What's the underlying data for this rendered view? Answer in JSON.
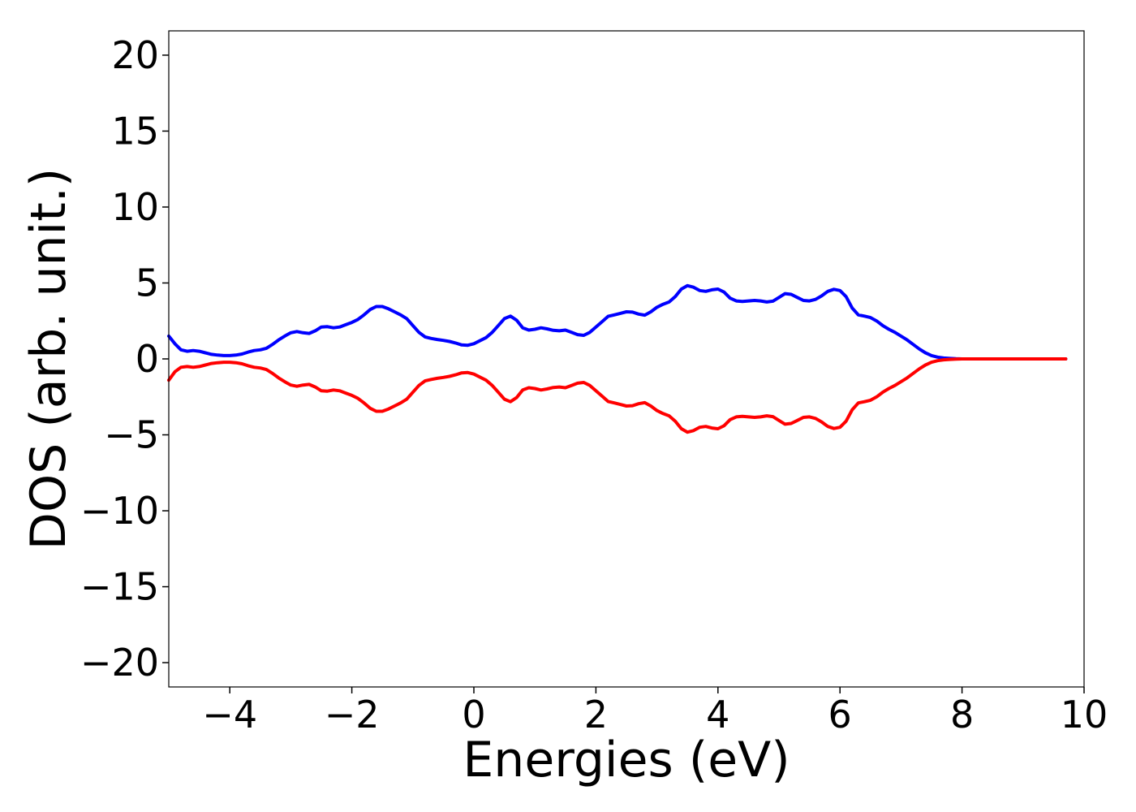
{
  "chart_data": {
    "type": "line",
    "title": "",
    "xlabel": "Energies (eV)",
    "ylabel": "DOS (arb. unit.)",
    "xlim": [
      -5,
      10
    ],
    "ylim": [
      -21.6,
      21.6
    ],
    "grid": false,
    "legend": "none",
    "x_ticks": [
      -4,
      -2,
      0,
      2,
      4,
      6,
      8,
      10
    ],
    "x_tick_labels": [
      "−4",
      "−2",
      "0",
      "2",
      "4",
      "6",
      "8",
      "10"
    ],
    "y_ticks": [
      20,
      15,
      10,
      5,
      0,
      -5,
      -10,
      -15,
      -20
    ],
    "y_tick_labels": [
      "20",
      "15",
      "10",
      "5",
      "0",
      "−5",
      "−10",
      "−15",
      "−20"
    ],
    "x": [
      -5.0,
      -4.9,
      -4.8,
      -4.7,
      -4.6,
      -4.5,
      -4.4,
      -4.3,
      -4.2,
      -4.1,
      -4.0,
      -3.9,
      -3.8,
      -3.7,
      -3.6,
      -3.5,
      -3.4,
      -3.3,
      -3.2,
      -3.1,
      -3.0,
      -2.9,
      -2.8,
      -2.7,
      -2.6,
      -2.5,
      -2.4,
      -2.3,
      -2.2,
      -2.1,
      -2.0,
      -1.9,
      -1.8,
      -1.7,
      -1.6,
      -1.5,
      -1.4,
      -1.3,
      -1.2,
      -1.1,
      -1.0,
      -0.9,
      -0.8,
      -0.7,
      -0.6,
      -0.5,
      -0.4,
      -0.3,
      -0.2,
      -0.1,
      0.0,
      0.1,
      0.2,
      0.3,
      0.4,
      0.5,
      0.6,
      0.7,
      0.8,
      0.9,
      1.0,
      1.1,
      1.2,
      1.3,
      1.4,
      1.5,
      1.6,
      1.7,
      1.8,
      1.9,
      2.0,
      2.1,
      2.2,
      2.3,
      2.4,
      2.5,
      2.6,
      2.7,
      2.8,
      2.9,
      3.0,
      3.1,
      3.2,
      3.3,
      3.4,
      3.5,
      3.6,
      3.7,
      3.8,
      3.9,
      4.0,
      4.1,
      4.2,
      4.3,
      4.4,
      4.5,
      4.6,
      4.7,
      4.8,
      4.9,
      5.0,
      5.1,
      5.2,
      5.3,
      5.4,
      5.5,
      5.6,
      5.7,
      5.8,
      5.9,
      6.0,
      6.1,
      6.2,
      6.3,
      6.4,
      6.5,
      6.6,
      6.7,
      6.8,
      6.9,
      7.0,
      7.1,
      7.2,
      7.3,
      7.4,
      7.5,
      7.6,
      7.7,
      7.8,
      7.9,
      8.0,
      8.5,
      9.0,
      9.5,
      9.7
    ],
    "series": [
      {
        "color": "#0000ff",
        "values": [
          1.5,
          1.0,
          0.6,
          0.5,
          0.55,
          0.5,
          0.4,
          0.3,
          0.25,
          0.22,
          0.22,
          0.25,
          0.32,
          0.45,
          0.55,
          0.6,
          0.7,
          0.95,
          1.25,
          1.5,
          1.72,
          1.8,
          1.72,
          1.68,
          1.85,
          2.1,
          2.12,
          2.05,
          2.1,
          2.25,
          2.4,
          2.6,
          2.9,
          3.25,
          3.45,
          3.45,
          3.3,
          3.1,
          2.9,
          2.65,
          2.2,
          1.75,
          1.45,
          1.35,
          1.28,
          1.22,
          1.15,
          1.05,
          0.92,
          0.9,
          1.0,
          1.2,
          1.4,
          1.75,
          2.2,
          2.65,
          2.82,
          2.55,
          2.05,
          1.9,
          1.95,
          2.05,
          1.98,
          1.88,
          1.85,
          1.9,
          1.75,
          1.6,
          1.55,
          1.75,
          2.1,
          2.45,
          2.8,
          2.9,
          3.0,
          3.1,
          3.08,
          2.95,
          2.88,
          3.1,
          3.4,
          3.6,
          3.75,
          4.1,
          4.6,
          4.82,
          4.72,
          4.5,
          4.45,
          4.55,
          4.6,
          4.4,
          4.0,
          3.82,
          3.78,
          3.82,
          3.85,
          3.82,
          3.75,
          3.8,
          4.05,
          4.3,
          4.25,
          4.05,
          3.85,
          3.82,
          3.92,
          4.15,
          4.45,
          4.58,
          4.5,
          4.1,
          3.35,
          2.9,
          2.82,
          2.72,
          2.5,
          2.2,
          1.95,
          1.75,
          1.5,
          1.25,
          0.95,
          0.65,
          0.4,
          0.22,
          0.12,
          0.06,
          0.03,
          0.01,
          0.0,
          0.0,
          0.0,
          0.0,
          0.0
        ]
      },
      {
        "color": "#ff0000",
        "values": [
          -1.4,
          -0.85,
          -0.55,
          -0.5,
          -0.55,
          -0.5,
          -0.4,
          -0.3,
          -0.25,
          -0.22,
          -0.22,
          -0.25,
          -0.32,
          -0.45,
          -0.55,
          -0.6,
          -0.7,
          -0.95,
          -1.25,
          -1.5,
          -1.72,
          -1.8,
          -1.72,
          -1.68,
          -1.85,
          -2.1,
          -2.12,
          -2.05,
          -2.1,
          -2.25,
          -2.4,
          -2.6,
          -2.9,
          -3.25,
          -3.45,
          -3.45,
          -3.3,
          -3.1,
          -2.9,
          -2.65,
          -2.2,
          -1.75,
          -1.45,
          -1.35,
          -1.28,
          -1.22,
          -1.15,
          -1.05,
          -0.92,
          -0.9,
          -1.0,
          -1.2,
          -1.4,
          -1.75,
          -2.2,
          -2.65,
          -2.82,
          -2.55,
          -2.05,
          -1.9,
          -1.95,
          -2.05,
          -1.98,
          -1.88,
          -1.85,
          -1.9,
          -1.75,
          -1.6,
          -1.55,
          -1.75,
          -2.1,
          -2.45,
          -2.8,
          -2.9,
          -3.0,
          -3.1,
          -3.08,
          -2.95,
          -2.88,
          -3.1,
          -3.4,
          -3.6,
          -3.75,
          -4.1,
          -4.6,
          -4.82,
          -4.72,
          -4.5,
          -4.45,
          -4.55,
          -4.6,
          -4.4,
          -4.0,
          -3.82,
          -3.78,
          -3.82,
          -3.85,
          -3.82,
          -3.75,
          -3.8,
          -4.05,
          -4.3,
          -4.25,
          -4.05,
          -3.85,
          -3.82,
          -3.92,
          -4.15,
          -4.45,
          -4.58,
          -4.5,
          -4.1,
          -3.35,
          -2.9,
          -2.82,
          -2.72,
          -2.5,
          -2.2,
          -1.95,
          -1.75,
          -1.5,
          -1.25,
          -0.95,
          -0.65,
          -0.4,
          -0.22,
          -0.12,
          -0.06,
          -0.03,
          -0.01,
          0.0,
          0.0,
          0.0,
          0.0,
          0.0
        ]
      }
    ]
  }
}
